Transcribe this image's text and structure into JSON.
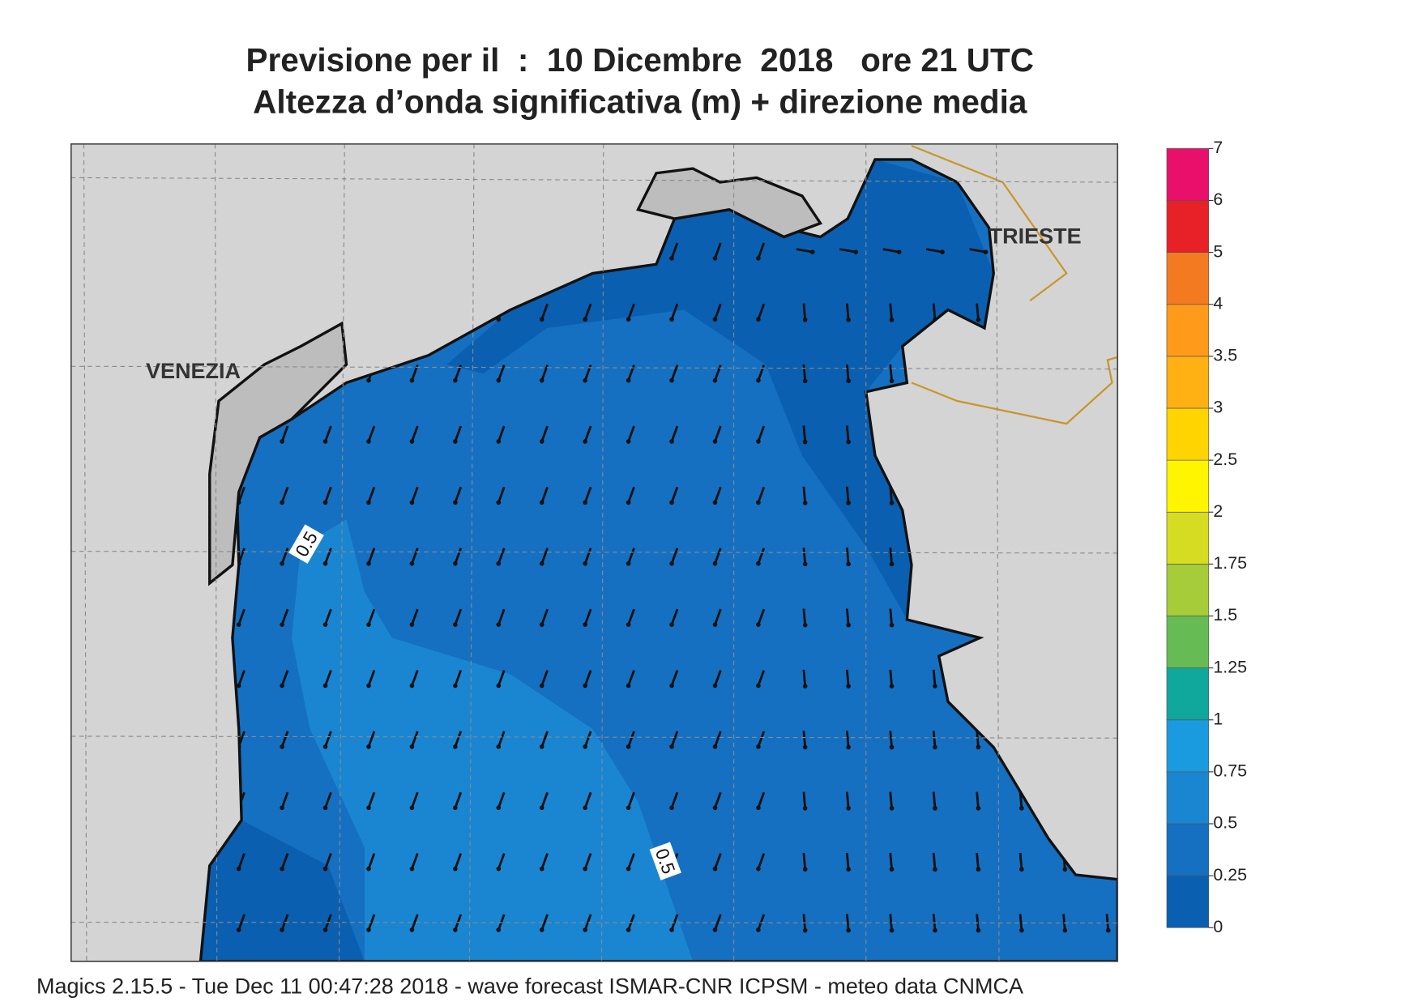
{
  "title": [
    "Previsione per il  :  10 Dicembre  2018   ore 21 UTC",
    "Altezza d’onda significativa (m) + direzione media"
  ],
  "places": [
    "VENEZIA",
    "TRIESTE"
  ],
  "contour_labels": [
    "0.5",
    "0.5"
  ],
  "legend": {
    "levels": [
      0,
      0.25,
      0.5,
      0.75,
      1,
      1.25,
      1.5,
      1.75,
      2,
      2.5,
      3,
      3.5,
      4,
      5,
      6,
      7
    ],
    "colors": [
      "#0a5fb0",
      "#1570c2",
      "#1a86d2",
      "#1a9be0",
      "#10a89c",
      "#66bb55",
      "#a6cc3a",
      "#d6dc22",
      "#fff500",
      "#ffd400",
      "#ffb012",
      "#ff9a1a",
      "#f47a22",
      "#e82028",
      "#e8106a"
    ]
  },
  "footer": "Magics 2.15.5 - Tue Dec 11 00:47:28 2018 - wave forecast  ISMAR-CNR  ICPSM - meteo data   CNMCA"
}
